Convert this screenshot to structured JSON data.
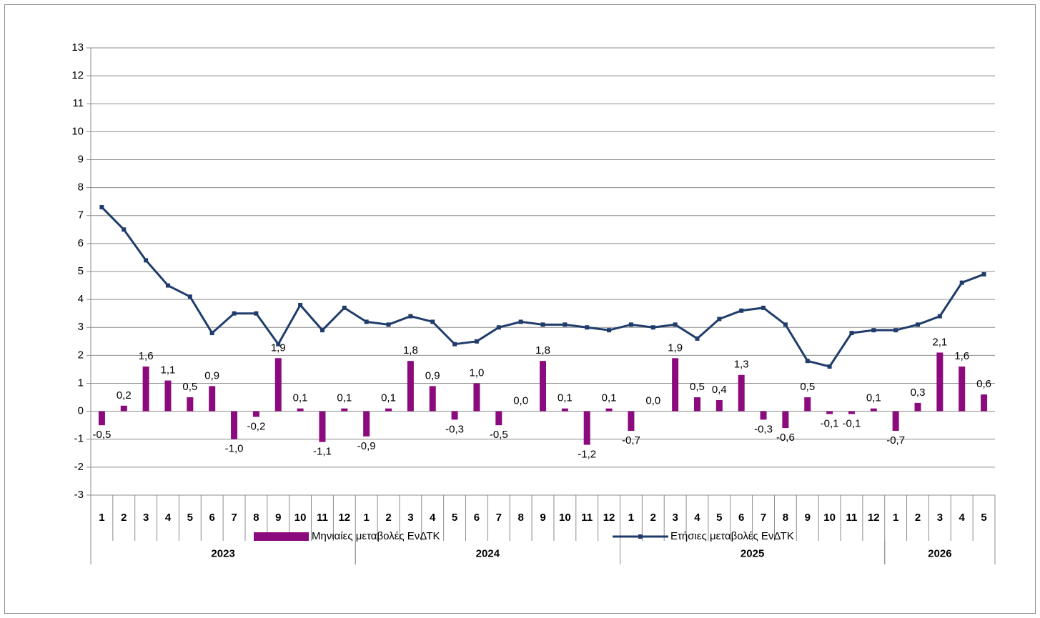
{
  "chart_data": {
    "type": "bar-line",
    "categories": [
      "1",
      "2",
      "3",
      "4",
      "5",
      "6",
      "7",
      "8",
      "9",
      "10",
      "11",
      "12",
      "1",
      "2",
      "3",
      "4",
      "5",
      "6",
      "7",
      "8",
      "9",
      "10",
      "11",
      "12",
      "1",
      "2",
      "3",
      "4",
      "5",
      "6",
      "7",
      "8",
      "9",
      "10",
      "11",
      "12",
      "1",
      "2",
      "3",
      "4",
      "5"
    ],
    "category_groups": [
      {
        "name": "2023",
        "size": 12
      },
      {
        "name": "2024",
        "size": 12
      },
      {
        "name": "2025",
        "size": 12
      },
      {
        "name": "2026",
        "size": 5
      }
    ],
    "series": [
      {
        "name": "Μηνιαίες μεταβολές ΕνΔΤΚ",
        "type": "bar",
        "color": "#8b0a7d",
        "values": [
          -0.5,
          0.2,
          1.6,
          1.1,
          0.5,
          0.9,
          -1.0,
          -0.2,
          1.9,
          0.1,
          -1.1,
          0.1,
          -0.9,
          0.1,
          1.8,
          0.9,
          -0.3,
          1.0,
          -0.5,
          0.0,
          1.8,
          0.1,
          -1.2,
          0.1,
          -0.7,
          0.0,
          1.9,
          0.5,
          0.4,
          1.3,
          -0.3,
          -0.6,
          0.5,
          -0.1,
          -0.1,
          0.1,
          -0.7,
          0.3,
          2.1,
          1.6,
          0.6
        ],
        "value_labels": [
          "-0,5",
          "0,2",
          "1,6",
          "1,1",
          "0,5",
          "0,9",
          "-1,0",
          "-0,2",
          "1,9",
          "0,1",
          "-1,1",
          "0,1",
          "-0,9",
          "0,1",
          "1,8",
          "0,9",
          "-0,3",
          "1,0",
          "-0,5",
          "0,0",
          "1,8",
          "0,1",
          "-1,2",
          "0,1",
          "-0,7",
          "0,0",
          "1,9",
          "0,5",
          "0,4",
          "1,3",
          "-0,3",
          "-0,6",
          "0,5",
          "-0,1",
          "-0,1",
          "0,1",
          "-0,7",
          "0,3",
          "2,1",
          "1,6",
          "0,6"
        ]
      },
      {
        "name": "Ετήσιες μεταβολές ΕνΔΤΚ",
        "type": "line",
        "color": "#1f3c6b",
        "values": [
          7.3,
          6.5,
          5.4,
          4.5,
          4.1,
          2.8,
          3.5,
          3.5,
          2.4,
          3.8,
          2.9,
          3.7,
          3.2,
          3.1,
          3.4,
          3.2,
          2.4,
          2.5,
          3.0,
          3.2,
          3.1,
          3.1,
          3.0,
          2.9,
          3.1,
          3.0,
          3.1,
          2.6,
          3.3,
          3.6,
          3.7,
          3.1,
          1.8,
          1.6,
          2.8,
          2.9,
          2.9,
          3.1,
          3.4,
          4.6,
          4.9
        ]
      }
    ],
    "ylim": [
      -3,
      13
    ],
    "yticks": [
      -3,
      -2,
      -1,
      0,
      1,
      2,
      3,
      4,
      5,
      6,
      7,
      8,
      9,
      10,
      11,
      12,
      13
    ],
    "grid": true,
    "legend": "bottom"
  }
}
